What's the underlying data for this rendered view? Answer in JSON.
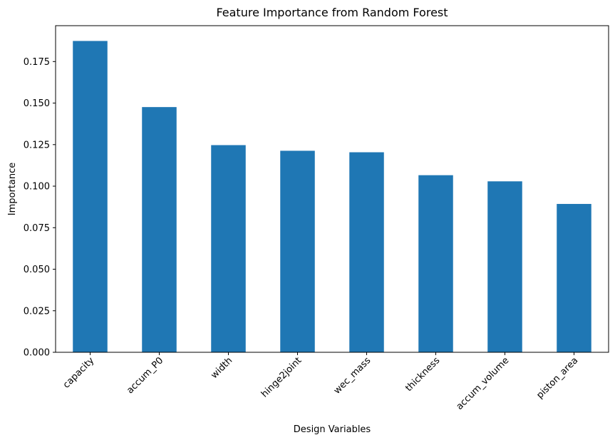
{
  "chart_data": {
    "type": "bar",
    "title": "Feature Importance from Random Forest",
    "xlabel": "Design Variables",
    "ylabel": "Importance",
    "categories": [
      "capacity",
      "accum_P0",
      "width",
      "hinge2joint",
      "wec_mass",
      "thickness",
      "accum_volume",
      "piston_area"
    ],
    "values": [
      0.1874,
      0.1476,
      0.1247,
      0.1213,
      0.1204,
      0.1066,
      0.1029,
      0.0893
    ],
    "ylim": [
      0,
      0.1966
    ],
    "yticks": [
      "0.000",
      "0.025",
      "0.050",
      "0.075",
      "0.100",
      "0.125",
      "0.150",
      "0.175"
    ],
    "ytick_values": [
      0,
      0.025,
      0.05,
      0.075,
      0.1,
      0.125,
      0.15,
      0.175
    ],
    "grid": false,
    "legend": "none",
    "colors": {
      "bar": "#1f77b4"
    }
  }
}
